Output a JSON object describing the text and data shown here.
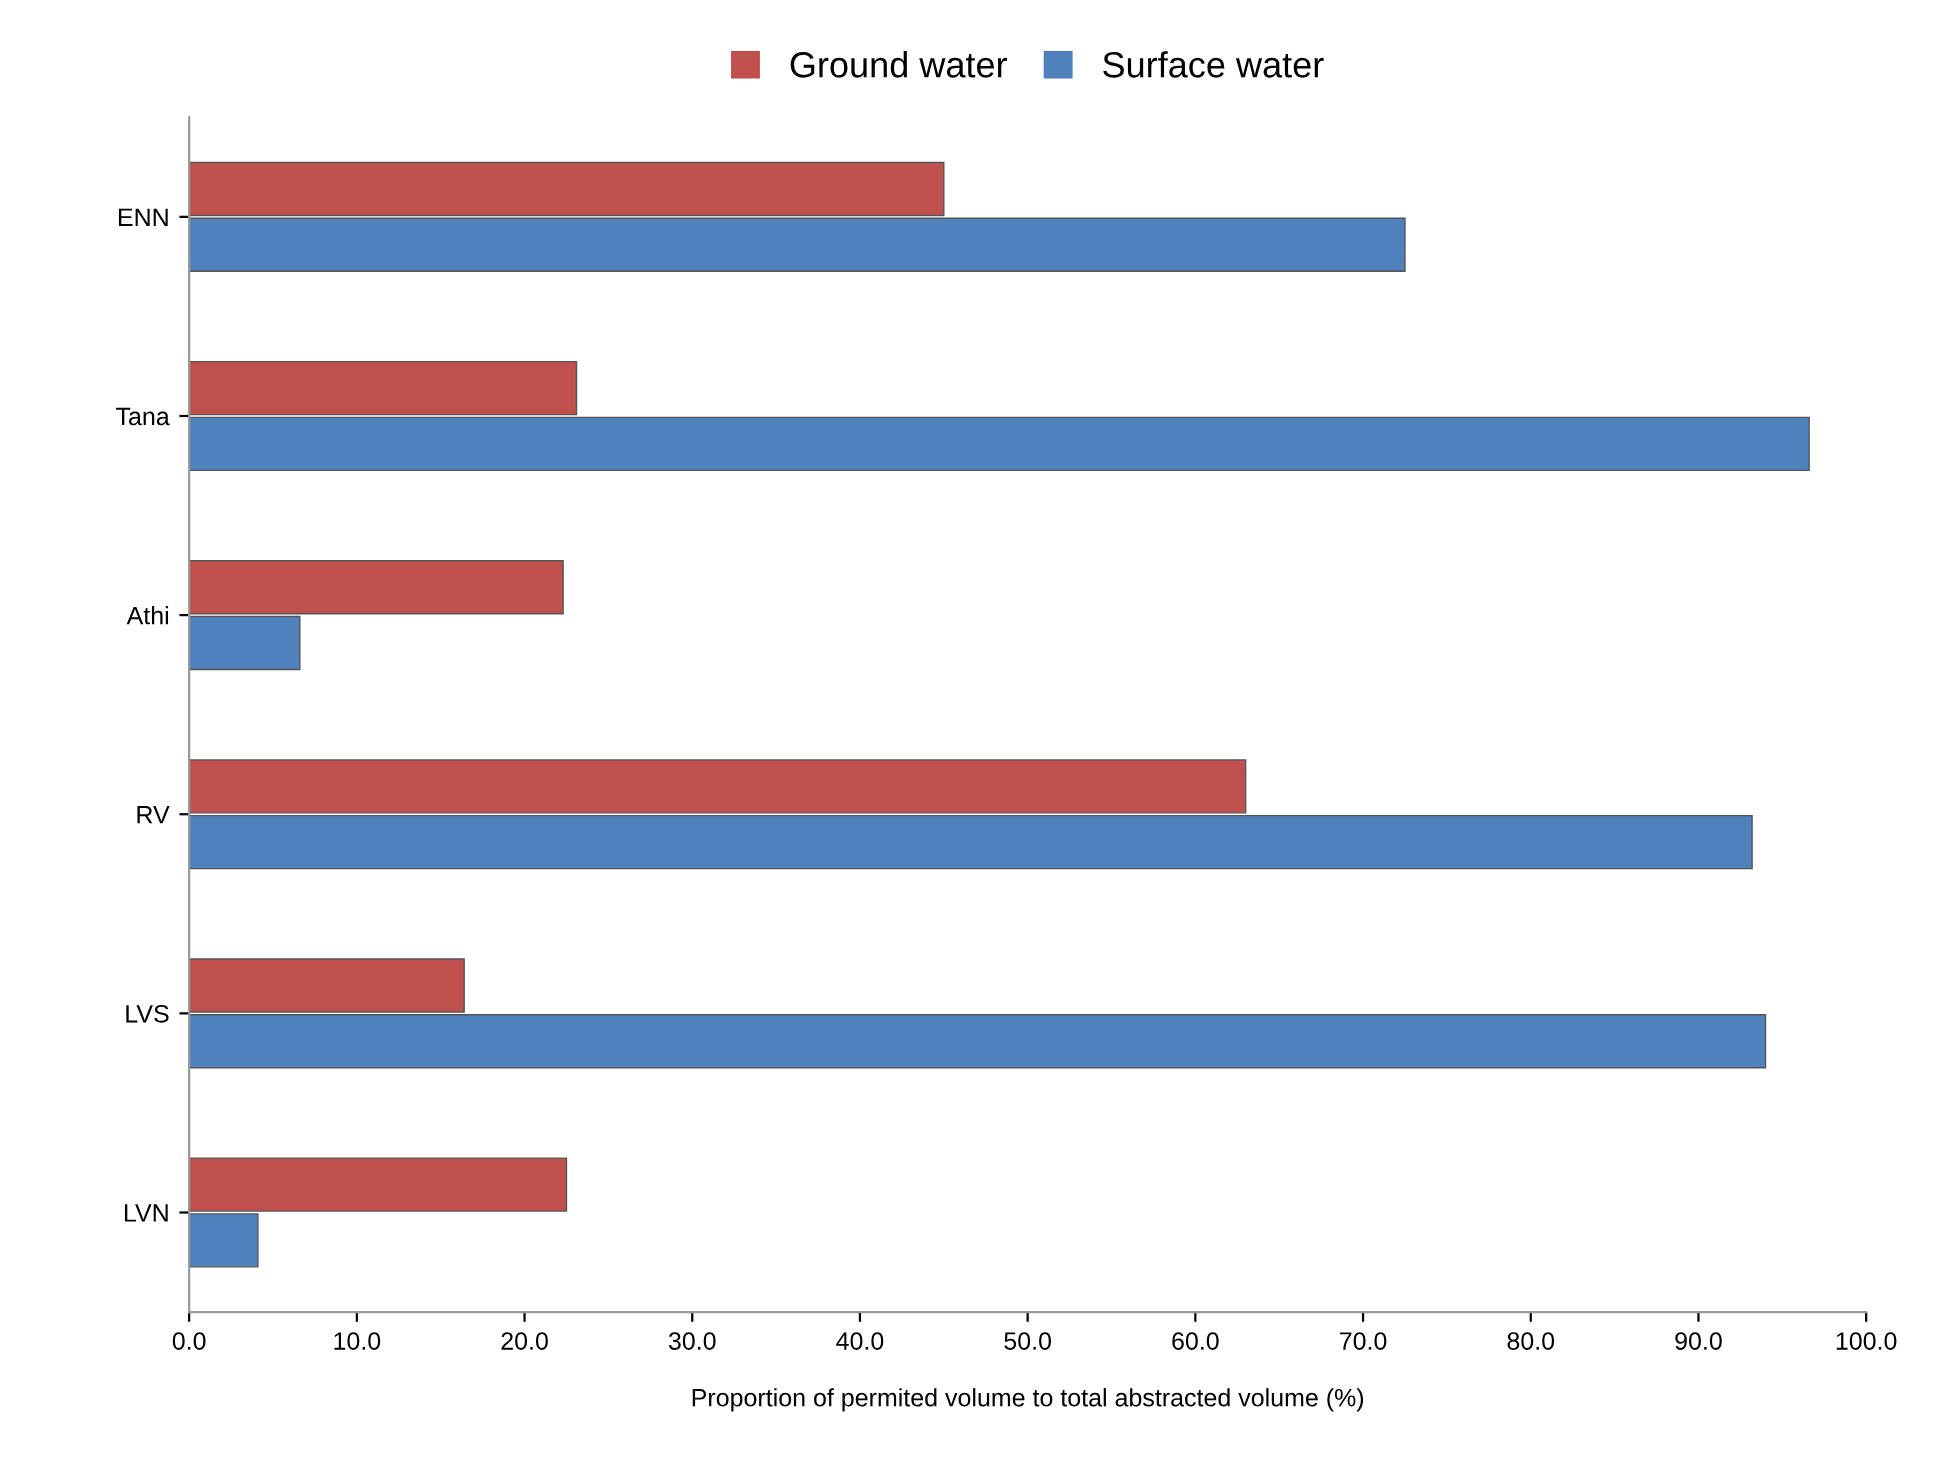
{
  "chart_data": {
    "type": "bar",
    "orientation": "horizontal",
    "xlabel": "Proportion of permited volume to total abstracted volume (%)",
    "categories": [
      "ENN",
      "Tana",
      "Athi",
      "RV",
      "LVS",
      "LVN"
    ],
    "series": [
      {
        "name": "Ground water",
        "color": "#c0504d",
        "values": [
          45.0,
          23.1,
          22.3,
          63.0,
          16.4,
          22.5
        ]
      },
      {
        "name": "Surface water",
        "color": "#4f81bd",
        "values": [
          72.5,
          96.6,
          6.6,
          93.2,
          94.0,
          4.1
        ]
      }
    ],
    "xlim": [
      0,
      100
    ],
    "xticks": [
      {
        "value": 0,
        "label": "0.0"
      },
      {
        "value": 10,
        "label": "10.0"
      },
      {
        "value": 20,
        "label": "20.0"
      },
      {
        "value": 30,
        "label": "30.0"
      },
      {
        "value": 40,
        "label": "40.0"
      },
      {
        "value": 50,
        "label": "50.0"
      },
      {
        "value": 60,
        "label": "60.0"
      },
      {
        "value": 70,
        "label": "70.0"
      },
      {
        "value": 80,
        "label": "80.0"
      },
      {
        "value": 90,
        "label": "90.0"
      },
      {
        "value": 100,
        "label": "100.0"
      }
    ],
    "grid": false,
    "legend": "top"
  }
}
